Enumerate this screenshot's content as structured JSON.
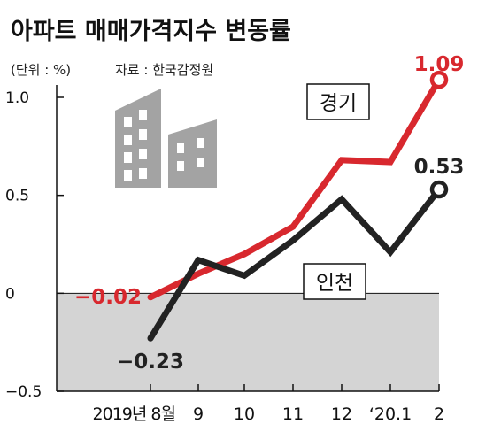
{
  "chart_data": {
    "type": "line",
    "title": "아파트 매매가격지수 변동률",
    "unit_note": "(단위 : %)",
    "source_note": "자료 : 한국감정원",
    "x_tick_labels": [
      "2019년 8월",
      "9",
      "10",
      "11",
      "12",
      "‘20.1",
      "2"
    ],
    "y_ticks": [
      1.0,
      0.5,
      0,
      -0.5
    ],
    "y_tick_labels": [
      "1.0",
      "0.5",
      "0",
      "−0.5"
    ],
    "ylim": [
      -0.5,
      1.0
    ],
    "series": [
      {
        "name": "경기",
        "color": "#d8282e",
        "values": [
          -0.02,
          0.1,
          0.2,
          0.34,
          0.68,
          0.67,
          1.09
        ],
        "start_label": "−0.02",
        "end_label": "1.09"
      },
      {
        "name": "인천",
        "color": "#222222",
        "values": [
          -0.23,
          0.17,
          0.09,
          0.27,
          0.48,
          0.21,
          0.53
        ],
        "start_label": "−0.23",
        "end_label": "0.53"
      }
    ],
    "colors": {
      "negative_area": "#d4d4d4",
      "icon": "#a3a3a3"
    }
  }
}
